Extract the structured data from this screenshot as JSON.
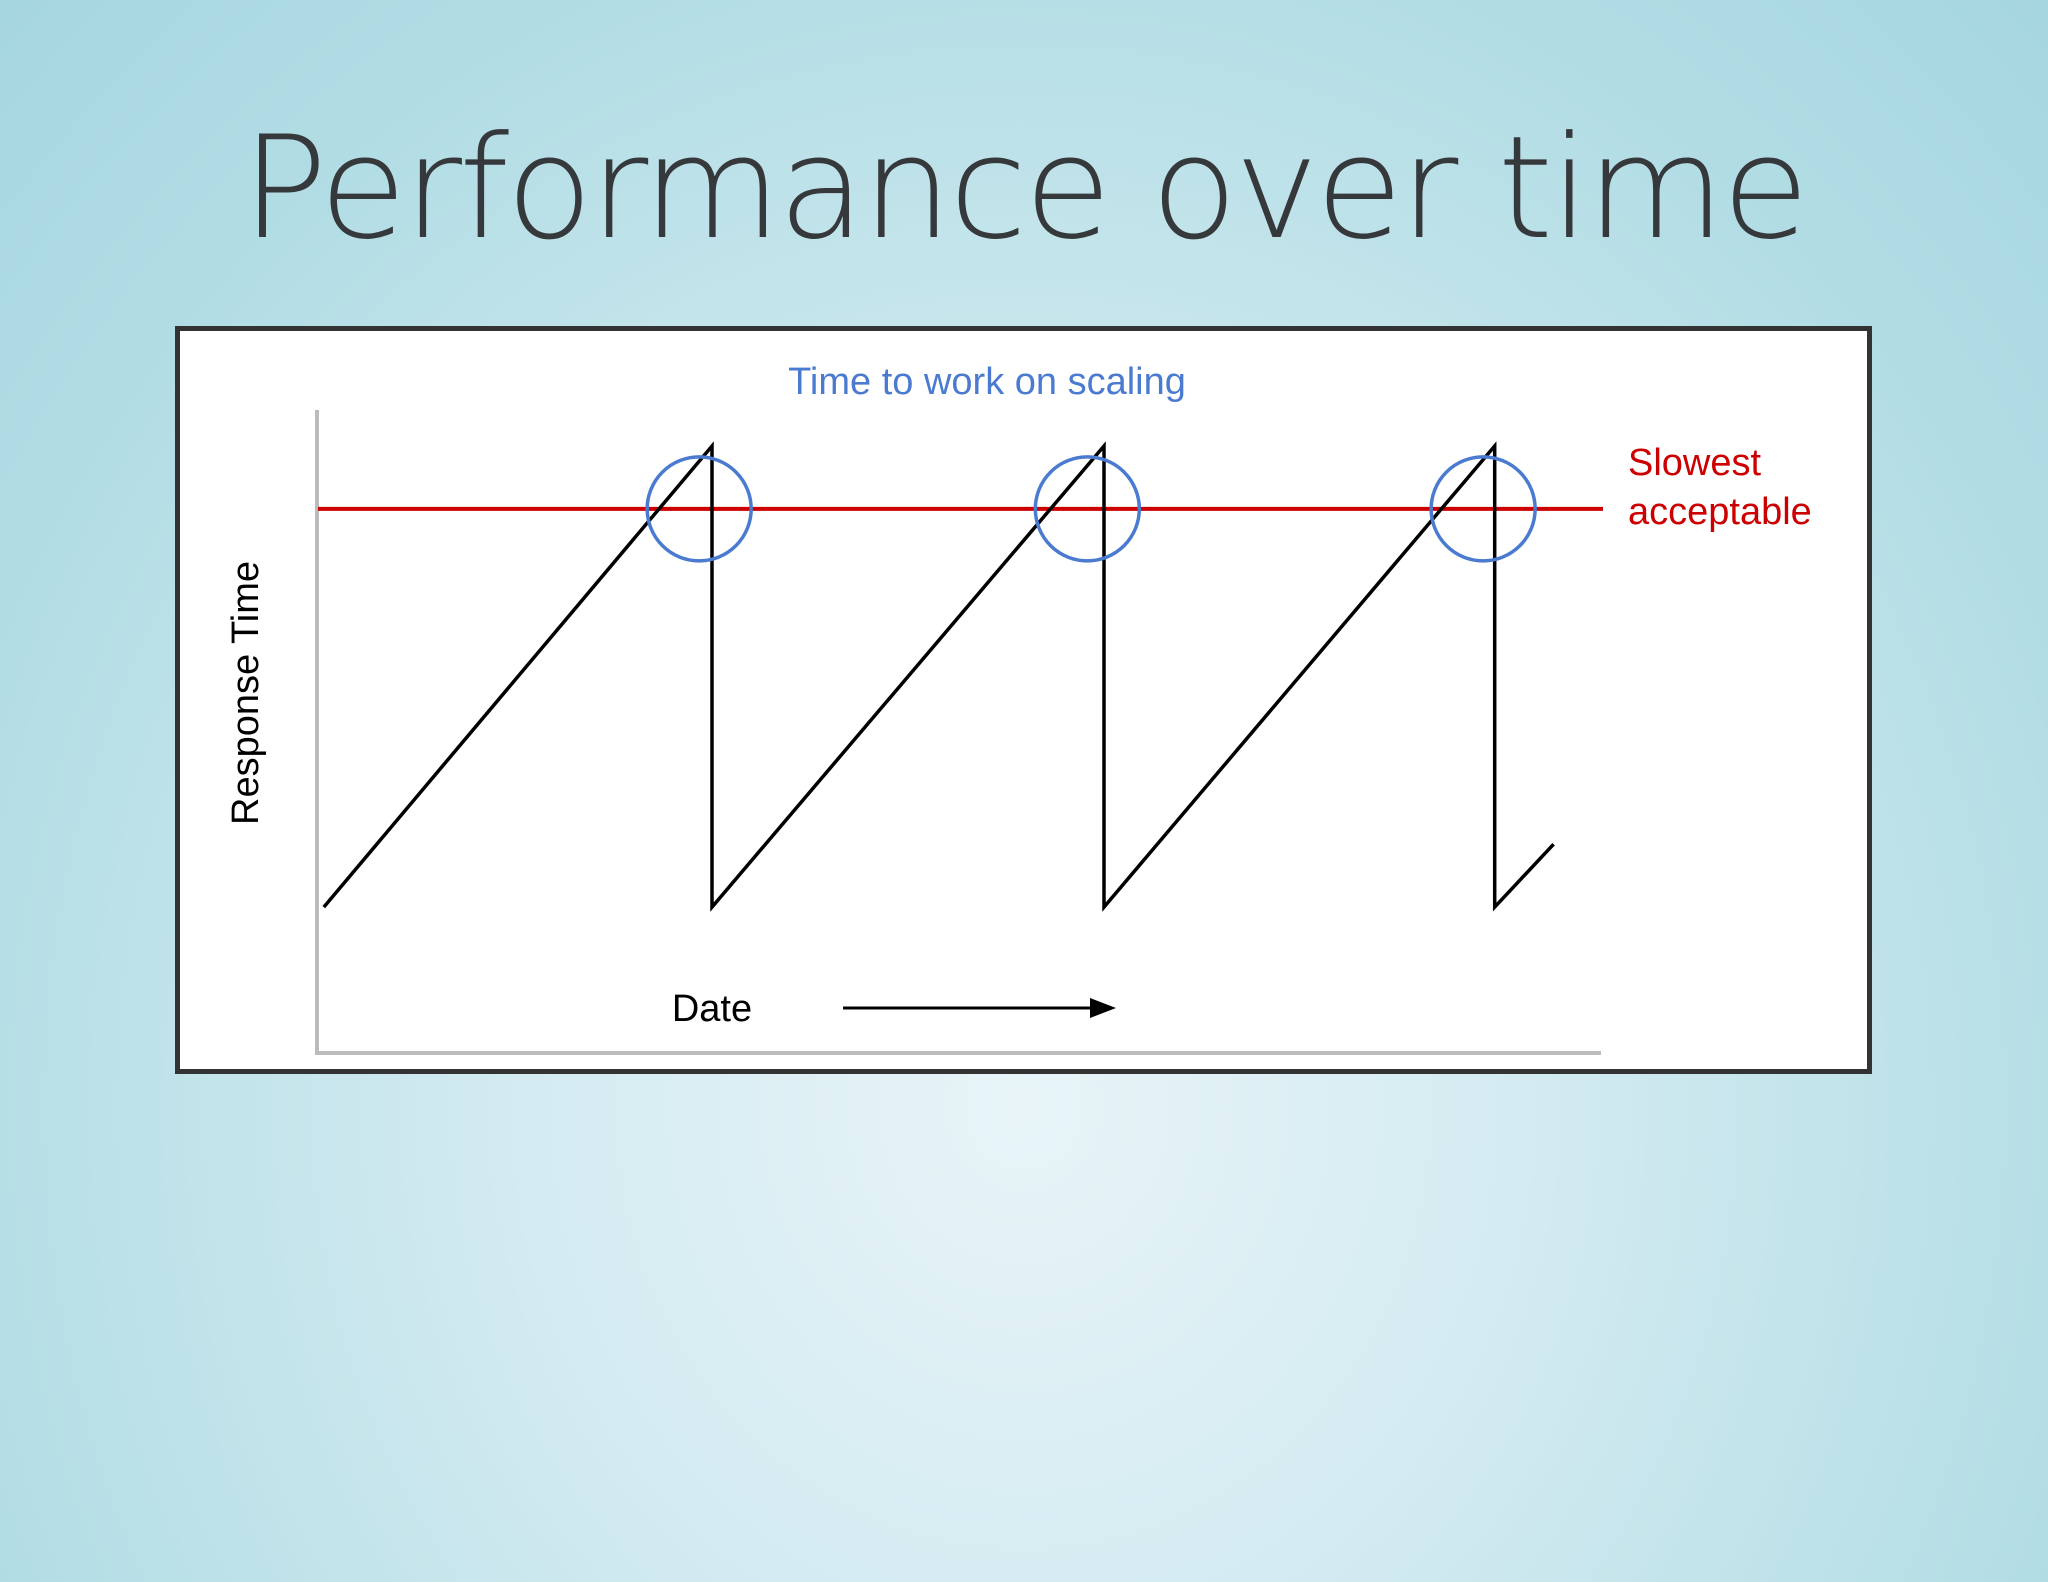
{
  "slide": {
    "title": "Performance over time"
  },
  "chart_data": {
    "type": "line",
    "ylabel": "Response Time",
    "xlabel": "Date",
    "annotations": {
      "scaling_label": "Time to work on scaling",
      "threshold_label_line1": "Slowest",
      "threshold_label_line2": "acceptable"
    },
    "threshold": 88,
    "xlim": [
      0,
      100
    ],
    "ylim": [
      0,
      100
    ],
    "series": [
      {
        "points": [
          [
            0.3,
            12
          ],
          [
            30.6,
            100
          ],
          [
            30.6,
            12
          ],
          [
            61.2,
            100
          ],
          [
            61.2,
            12
          ],
          [
            91.7,
            100
          ],
          [
            91.7,
            12
          ],
          [
            96.3,
            24
          ]
        ]
      }
    ],
    "highlights": [
      {
        "x": 29.6,
        "y": 88
      },
      {
        "x": 59.9,
        "y": 88
      },
      {
        "x": 90.8,
        "y": 88
      }
    ],
    "grid": false,
    "colors": {
      "line": "#000000",
      "threshold": "#cc0000",
      "highlight": "#4a7bd0",
      "axis": "#bbbbbb"
    }
  }
}
